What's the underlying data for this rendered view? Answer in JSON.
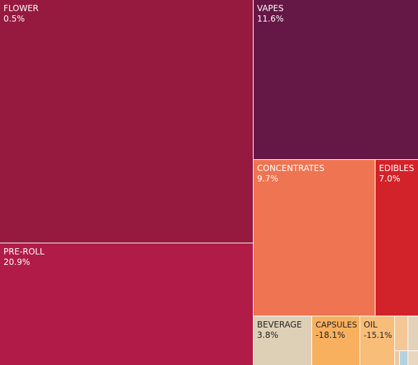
{
  "chart_data": {
    "type": "treemap",
    "title": "",
    "tiles": [
      {
        "category": "FLOWER",
        "value": "0.5%",
        "color": "#96193f",
        "text_color": "#ffffff"
      },
      {
        "category": "VAPES",
        "value": "11.6%",
        "color": "#651745",
        "text_color": "#ffffff"
      },
      {
        "category": "PRE-ROLL",
        "value": "20.9%",
        "color": "#b01c47",
        "text_color": "#ffffff"
      },
      {
        "category": "CONCENTRATES",
        "value": "9.7%",
        "color": "#ef7451",
        "text_color": "#ffffff"
      },
      {
        "category": "EDIBLES",
        "value": "7.0%",
        "color": "#d2232a",
        "text_color": "#ffffff"
      },
      {
        "category": "BEVERAGE",
        "value": "3.8%",
        "color": "#ddd0b6",
        "text_color": "#222222"
      },
      {
        "category": "CAPSULES",
        "value": "-18.1%",
        "color": "#f8b05f",
        "text_color": "#222222"
      },
      {
        "category": "OIL",
        "value": "-15.1%",
        "color": "#f8bd79",
        "text_color": "#222222"
      },
      {
        "category": "",
        "value": "",
        "color": "#f3c796",
        "text_color": "#222222"
      },
      {
        "category": "",
        "value": "",
        "color": "#e2d2b9",
        "text_color": "#222222"
      },
      {
        "category": "",
        "value": "",
        "color": "#eac8a6",
        "text_color": "#222222"
      },
      {
        "category": "",
        "value": "",
        "color": "#b3d1de",
        "text_color": "#222222"
      },
      {
        "category": "",
        "value": "",
        "color": "#e8d6c0",
        "text_color": "#222222"
      }
    ]
  }
}
